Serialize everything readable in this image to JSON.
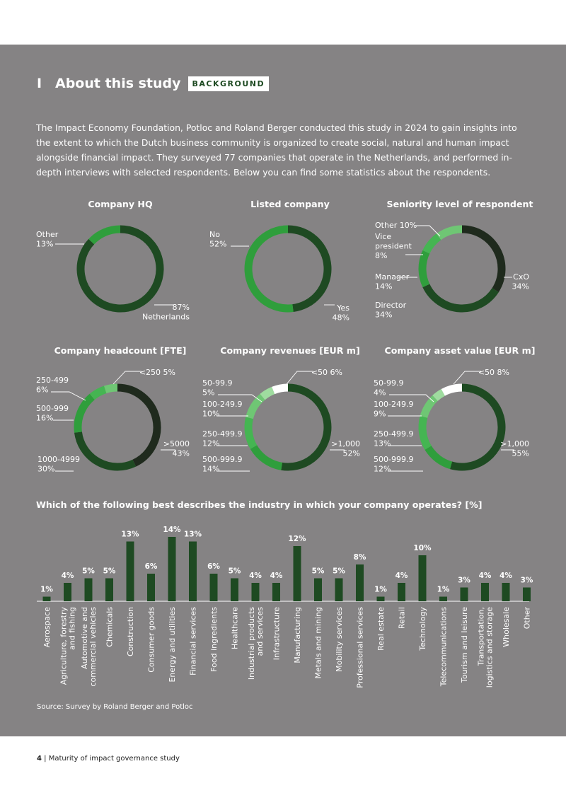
{
  "header": {
    "section_marker": "I",
    "title": "About this study",
    "badge": "BACKGROUND"
  },
  "intro": "The Impact Economy Foundation, Potloc and Roland Berger conducted this study in 2024 to gain insights into the extent to which the Dutch business community is organized to create social, natural and human impact alongside financial impact. They surveyed 77 companies that operate in the Netherlands, and performed in-depth interviews with selected respondents. Below you can find some statistics about the respondents.",
  "colors": {
    "background": "#858384",
    "dark_green": "#1e4a22",
    "near_black": "#1f2a1d",
    "mid_green": "#2f9e3c",
    "green": "#45b552",
    "light_green": "#6fc674",
    "pale_green": "#9fdc9f",
    "white": "#ffffff"
  },
  "chart_data": [
    {
      "type": "pie",
      "title": "Company HQ",
      "slices": [
        {
          "name": "Netherlands",
          "value": 87,
          "color": "#1e4a22"
        },
        {
          "name": "Other",
          "value": 13,
          "color": "#2f9e3c"
        }
      ],
      "labels": [
        {
          "line1": "Other",
          "line2": "13%"
        },
        {
          "line1": "87%",
          "line2": "Netherlands"
        }
      ]
    },
    {
      "type": "pie",
      "title": "Listed company",
      "slices": [
        {
          "name": "Yes",
          "value": 48,
          "color": "#1e4a22"
        },
        {
          "name": "No",
          "value": 52,
          "color": "#2f9e3c"
        }
      ],
      "labels": [
        {
          "line1": "No",
          "line2": "52%"
        },
        {
          "line1": "Yes",
          "line2": "48%"
        }
      ]
    },
    {
      "type": "pie",
      "title": "Seniority level of respondent",
      "slices": [
        {
          "name": "CxO",
          "value": 34,
          "color": "#1f2a1d"
        },
        {
          "name": "Director",
          "value": 34,
          "color": "#1e4a22"
        },
        {
          "name": "Manager",
          "value": 14,
          "color": "#2f9e3c"
        },
        {
          "name": "Vice president",
          "value": 8,
          "color": "#45b552"
        },
        {
          "name": "Other",
          "value": 10,
          "color": "#6fc674"
        }
      ],
      "labels": [
        {
          "line1": "Other 10%"
        },
        {
          "line1": "Vice",
          "line2": "president",
          "line3": "8%"
        },
        {
          "line1": "Manager",
          "line2": "14%"
        },
        {
          "line1": "CxO",
          "line2": "34%"
        },
        {
          "line1": "Director",
          "line2": "34%"
        }
      ]
    },
    {
      "type": "pie",
      "title": "Company headcount [FTE]",
      "slices": [
        {
          "name": ">5000",
          "value": 43,
          "color": "#1f2a1d"
        },
        {
          "name": "1000-4999",
          "value": 30,
          "color": "#1e4a22"
        },
        {
          "name": "500-999",
          "value": 16,
          "color": "#2f9e3c"
        },
        {
          "name": "250-499",
          "value": 6,
          "color": "#45b552"
        },
        {
          "name": "<250",
          "value": 5,
          "color": "#6fc674"
        }
      ],
      "labels": [
        {
          "line1": "<250  5%"
        },
        {
          "line1": "250-499",
          "line2": "6%"
        },
        {
          "line1": "500-999",
          "line2": "16%"
        },
        {
          "line1": ">5000",
          "line2": "43%"
        },
        {
          "line1": "1000-4999",
          "line2": "30%"
        }
      ]
    },
    {
      "type": "pie",
      "title": "Company revenues [EUR m]",
      "slices": [
        {
          "name": ">1,000",
          "value": 52,
          "color": "#1e4a22"
        },
        {
          "name": "500-999.9",
          "value": 14,
          "color": "#2f9e3c"
        },
        {
          "name": "250-499.9",
          "value": 12,
          "color": "#45b552"
        },
        {
          "name": "100-249.9",
          "value": 10,
          "color": "#6fc674"
        },
        {
          "name": "50-99.9",
          "value": 5,
          "color": "#9fdc9f"
        },
        {
          "name": "<50",
          "value": 6,
          "color": "#ffffff"
        }
      ],
      "labels": [
        {
          "line1": "<50  6%"
        },
        {
          "line1": "50-99.9",
          "line2": "5%"
        },
        {
          "line1": "100-249.9",
          "line2": "10%"
        },
        {
          "line1": "250-499.9",
          "line2": "12%"
        },
        {
          "line1": ">1,000",
          "line2": "52%"
        },
        {
          "line1": "500-999.9",
          "line2": "14%"
        }
      ]
    },
    {
      "type": "pie",
      "title": "Company asset value [EUR m]",
      "slices": [
        {
          "name": ">1,000",
          "value": 55,
          "color": "#1e4a22"
        },
        {
          "name": "500-999.9",
          "value": 12,
          "color": "#2f9e3c"
        },
        {
          "name": "250-499.9",
          "value": 13,
          "color": "#45b552"
        },
        {
          "name": "100-249.9",
          "value": 9,
          "color": "#6fc674"
        },
        {
          "name": "50-99.9",
          "value": 4,
          "color": "#9fdc9f"
        },
        {
          "name": "<50",
          "value": 8,
          "color": "#ffffff"
        }
      ],
      "labels": [
        {
          "line1": "<50  8%"
        },
        {
          "line1": "50-99.9",
          "line2": "4%"
        },
        {
          "line1": "100-249.9",
          "line2": "9%"
        },
        {
          "line1": "250-499.9",
          "line2": "13%"
        },
        {
          "line1": ">1,000",
          "line2": "55%"
        },
        {
          "line1": "500-999.9",
          "line2": "12%"
        }
      ]
    },
    {
      "type": "bar",
      "title": "Which of the following best describes the industry in which your company operates? [%]",
      "unit": "%",
      "color": "#1e4a22",
      "categories": [
        [
          "Aerospace"
        ],
        [
          "Agriculture, forestry",
          "and fishing"
        ],
        [
          "Automotive and",
          "commercial vehicles"
        ],
        [
          "Chemicals"
        ],
        [
          "Construction"
        ],
        [
          "Consumer goods"
        ],
        [
          "Energy and utilities"
        ],
        [
          "Financial services"
        ],
        [
          "Food ingredients"
        ],
        [
          "Healthcare"
        ],
        [
          "Industrial products",
          "and services"
        ],
        [
          "Infrastructure"
        ],
        [
          "Manufacturing"
        ],
        [
          "Metals and mining"
        ],
        [
          "Mobility services"
        ],
        [
          "Professional services"
        ],
        [
          "Real estate"
        ],
        [
          "Retail"
        ],
        [
          "Technology"
        ],
        [
          "Telecommunications"
        ],
        [
          "Tourism and leisure"
        ],
        [
          "Transportation,",
          "logistics and storage"
        ],
        [
          "Wholesale"
        ],
        [
          "Other"
        ]
      ],
      "values": [
        1,
        4,
        5,
        5,
        13,
        6,
        14,
        13,
        6,
        5,
        4,
        4,
        12,
        5,
        5,
        8,
        1,
        4,
        10,
        1,
        3,
        4,
        4,
        3
      ]
    }
  ],
  "source": "Source: Survey by Roland Berger and Potloc",
  "footer": {
    "page_number": "4",
    "separator": "|",
    "doc_title": "Maturity of impact governance study"
  }
}
